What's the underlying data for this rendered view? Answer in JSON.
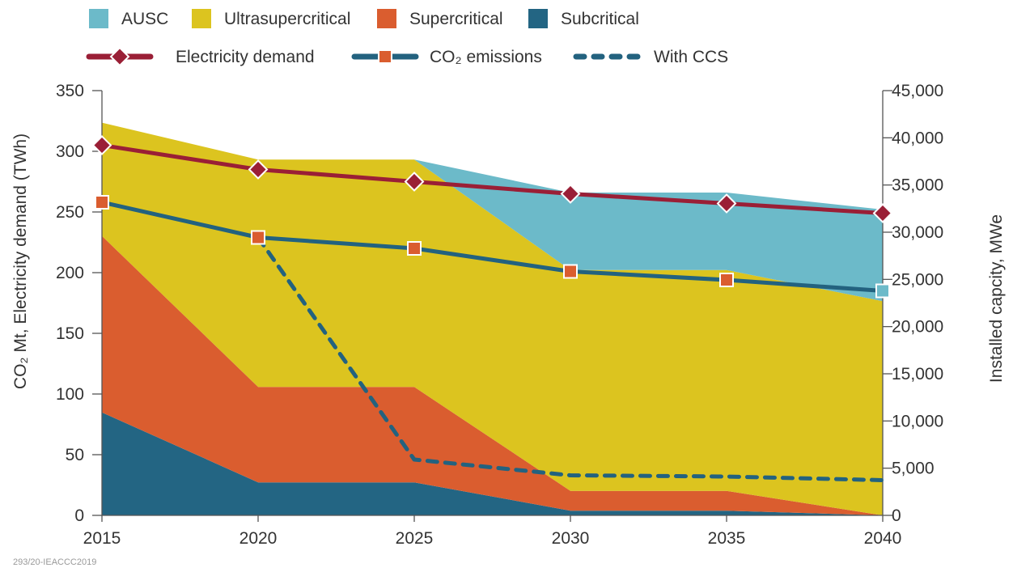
{
  "legend": {
    "areas": [
      {
        "label": "AUSC",
        "color": "#6cbac9"
      },
      {
        "label": "Ultrasupercritical",
        "color": "#dcc41f"
      },
      {
        "label": "Supercritical",
        "color": "#da5d2f"
      },
      {
        "label": "Subcritical",
        "color": "#236583"
      }
    ],
    "lines": [
      {
        "label": "Electricity demand",
        "color": "#9a1f36",
        "marker": "diamond"
      },
      {
        "label": "CO₂ emissions",
        "color": "#23627f",
        "marker": "square"
      },
      {
        "label": "With CCS",
        "color": "#23627f",
        "marker": "none"
      }
    ]
  },
  "source_note": "293/20-IEACCC2019",
  "chart_data": {
    "type": "area",
    "x": [
      2015,
      2020,
      2025,
      2030,
      2035,
      2040
    ],
    "xlim": [
      2015,
      2040
    ],
    "x_ticks": [
      "2015",
      "2020",
      "2025",
      "2030",
      "2035",
      "2040"
    ],
    "ylabel_left": "CO₂ Mt, Electricity demand (TWh)",
    "ylim_left": [
      0,
      350
    ],
    "y_ticks_left": [
      "0",
      "50",
      "100",
      "150",
      "200",
      "250",
      "300",
      "350"
    ],
    "ylabel_right": "Installed capcity, MWe",
    "ylim_right": [
      0,
      45000
    ],
    "y_ticks_right": [
      "0",
      "5,000",
      "10,000",
      "15,000",
      "20,000",
      "25,000",
      "30,000",
      "35,000",
      "40,000",
      "45,000"
    ],
    "grid": false,
    "legend_position": "top",
    "area_series": [
      {
        "name": "Subcritical",
        "color": "#236583",
        "axis": "right",
        "x": [
          2015,
          2020,
          2025,
          2030,
          2035,
          2040
        ],
        "values": [
          10900,
          3500,
          3500,
          500,
          500,
          0
        ]
      },
      {
        "name": "Supercritical",
        "color": "#da5d2f",
        "axis": "right",
        "x": [
          2015,
          2020,
          2025,
          2030,
          2035,
          2040
        ],
        "values": [
          18700,
          10100,
          10100,
          2100,
          2100,
          0
        ]
      },
      {
        "name": "Ultrasupercritical",
        "color": "#dcc41f",
        "axis": "right",
        "x": [
          2015,
          2020,
          2025,
          2030,
          2035,
          2040
        ],
        "values": [
          12000,
          24100,
          24100,
          23400,
          23400,
          22700
        ]
      },
      {
        "name": "AUSC",
        "color": "#6cbac9",
        "axis": "right",
        "x": [
          2015,
          2020,
          2025,
          2030,
          2035,
          2040
        ],
        "values": [
          0,
          0,
          0,
          8200,
          8200,
          9700
        ]
      }
    ],
    "line_series": [
      {
        "name": "Electricity demand",
        "color": "#9a1f36",
        "marker": "diamond",
        "axis": "left",
        "x": [
          2015,
          2020,
          2025,
          2030,
          2035,
          2040
        ],
        "values": [
          305,
          285,
          275,
          265,
          257,
          249
        ]
      },
      {
        "name": "CO₂ emissions",
        "color": "#23627f",
        "marker": "square",
        "marker_colors": [
          "#da5d2f",
          "#da5d2f",
          "#da5d2f",
          "#da5d2f",
          "#da5d2f",
          "#6cbac9"
        ],
        "axis": "left",
        "x": [
          2015,
          2020,
          2025,
          2030,
          2035,
          2040
        ],
        "values": [
          258,
          229,
          220,
          201,
          194,
          185
        ]
      },
      {
        "name": "With CCS",
        "color": "#23627f",
        "marker": "none",
        "dashed": true,
        "axis": "left",
        "x": [
          2020,
          2025,
          2030,
          2035,
          2040
        ],
        "values": [
          229,
          46,
          33,
          32,
          29
        ]
      }
    ]
  }
}
